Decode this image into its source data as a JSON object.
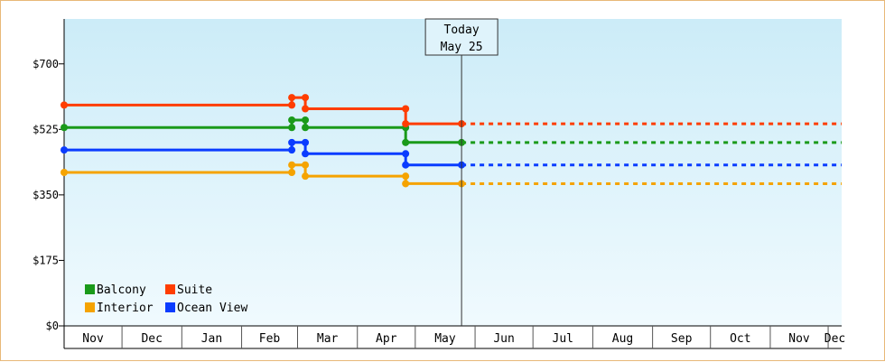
{
  "chart_data": {
    "type": "line",
    "title": "",
    "xlabel": "",
    "ylabel": "",
    "ylim": [
      0,
      820
    ],
    "y_ticks": [
      {
        "value": 0,
        "label": "$0"
      },
      {
        "value": 175,
        "label": "$175"
      },
      {
        "value": 350,
        "label": "$350"
      },
      {
        "value": 525,
        "label": "$525"
      },
      {
        "value": 700,
        "label": "$700"
      }
    ],
    "x_domain": [
      "2023-11-01",
      "2024-12-08"
    ],
    "month_ticks": [
      {
        "start": "2023-11-01",
        "label": "Nov"
      },
      {
        "start": "2023-12-01",
        "label": "Dec"
      },
      {
        "start": "2024-01-01",
        "label": "Jan"
      },
      {
        "start": "2024-02-01",
        "label": "Feb"
      },
      {
        "start": "2024-03-01",
        "label": "Mar"
      },
      {
        "start": "2024-04-01",
        "label": "Apr"
      },
      {
        "start": "2024-05-01",
        "label": "May"
      },
      {
        "start": "2024-06-01",
        "label": "Jun"
      },
      {
        "start": "2024-07-01",
        "label": "Jul"
      },
      {
        "start": "2024-08-01",
        "label": "Aug"
      },
      {
        "start": "2024-09-01",
        "label": "Sep"
      },
      {
        "start": "2024-10-01",
        "label": "Oct"
      },
      {
        "start": "2024-11-01",
        "label": "Nov"
      },
      {
        "start": "2024-12-01",
        "label": "Dec"
      }
    ],
    "today": {
      "date": "2024-05-25",
      "label_line1": "Today",
      "label_line2": "May 25"
    },
    "grid": false,
    "legend_position": "bottom-left",
    "projection_end": "2024-12-08",
    "series": [
      {
        "name": "Balcony",
        "color": "#1a9a1a",
        "points": [
          {
            "x": "2023-11-01",
            "y": 530
          },
          {
            "x": "2024-02-27",
            "y": 530
          },
          {
            "x": "2024-02-27",
            "y": 550
          },
          {
            "x": "2024-03-05",
            "y": 550
          },
          {
            "x": "2024-03-05",
            "y": 530
          },
          {
            "x": "2024-04-26",
            "y": 530
          },
          {
            "x": "2024-04-26",
            "y": 490
          },
          {
            "x": "2024-05-25",
            "y": 490
          }
        ]
      },
      {
        "name": "Suite",
        "color": "#ff3d00",
        "points": [
          {
            "x": "2023-11-01",
            "y": 590
          },
          {
            "x": "2024-02-27",
            "y": 590
          },
          {
            "x": "2024-02-27",
            "y": 610
          },
          {
            "x": "2024-03-05",
            "y": 610
          },
          {
            "x": "2024-03-05",
            "y": 580
          },
          {
            "x": "2024-04-26",
            "y": 580
          },
          {
            "x": "2024-04-26",
            "y": 540
          },
          {
            "x": "2024-05-25",
            "y": 540
          }
        ]
      },
      {
        "name": "Interior",
        "color": "#f5a300",
        "points": [
          {
            "x": "2023-11-01",
            "y": 410
          },
          {
            "x": "2024-02-27",
            "y": 410
          },
          {
            "x": "2024-02-27",
            "y": 430
          },
          {
            "x": "2024-03-05",
            "y": 430
          },
          {
            "x": "2024-03-05",
            "y": 400
          },
          {
            "x": "2024-04-26",
            "y": 400
          },
          {
            "x": "2024-04-26",
            "y": 380
          },
          {
            "x": "2024-05-25",
            "y": 380
          }
        ]
      },
      {
        "name": "Ocean View",
        "color": "#0a3cff",
        "points": [
          {
            "x": "2023-11-01",
            "y": 470
          },
          {
            "x": "2024-02-27",
            "y": 470
          },
          {
            "x": "2024-02-27",
            "y": 490
          },
          {
            "x": "2024-03-05",
            "y": 490
          },
          {
            "x": "2024-03-05",
            "y": 460
          },
          {
            "x": "2024-04-26",
            "y": 460
          },
          {
            "x": "2024-04-26",
            "y": 430
          },
          {
            "x": "2024-05-25",
            "y": 430
          }
        ]
      }
    ]
  }
}
